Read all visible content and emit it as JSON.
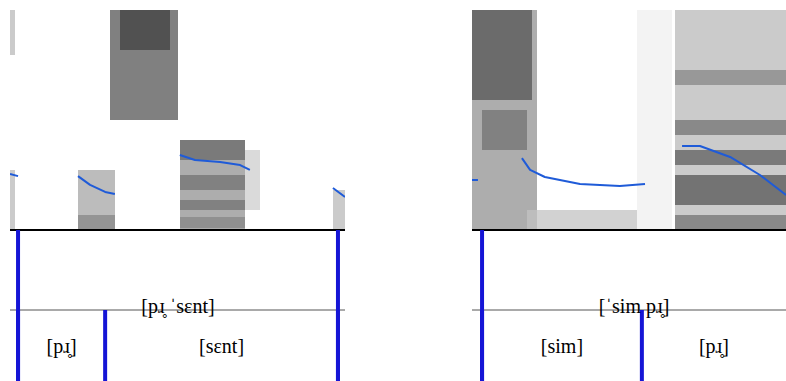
{
  "chart_data": [
    {
      "type": "line",
      "color": "#1f5bd8",
      "xlim": [
        0,
        100
      ],
      "ylim": [
        0,
        100
      ],
      "tick_labels": false,
      "x": [
        0,
        2.4,
        null,
        20.3,
        23.9,
        28.4,
        31.3,
        null,
        50.7,
        55.2,
        62.7,
        68.7,
        71.6,
        null,
        96.4,
        100
      ],
      "values": [
        25.5,
        24.5,
        null,
        24.5,
        20.5,
        17.3,
        16.4,
        null,
        34.1,
        31.8,
        30.9,
        29.5,
        27.3,
        null,
        19.1,
        15
      ],
      "annotations": {
        "word": {
          "labels": [
            "[pɹ̥ ˈsɛnt]"
          ],
          "boundaries": [
            2.4,
            97.9
          ]
        },
        "segments": {
          "labels": [
            "[pɹ̥]",
            "[sɛnt]"
          ],
          "boundaries": [
            2.4,
            28.4,
            97.9
          ]
        }
      }
    },
    {
      "type": "line",
      "color": "#1f5bd8",
      "xlim": [
        0,
        100
      ],
      "ylim": [
        0,
        100
      ],
      "tick_labels": false,
      "x": [
        0,
        1.9,
        null,
        15.9,
        18.5,
        23.2,
        34.4,
        47.1,
        55.1,
        null,
        66.9,
        72.6,
        82.2,
        91.7,
        100
      ],
      "values": [
        22.7,
        22.7,
        null,
        32.7,
        27.3,
        24.1,
        20.9,
        20,
        20.9,
        null,
        38.2,
        38.2,
        33.2,
        25,
        15.9
      ],
      "annotations": {
        "word": {
          "labels": [
            "[ˈsim pɹ̥]"
          ],
          "boundaries": [
            3.2
          ]
        },
        "segments": {
          "labels": [
            "[sim]",
            "[pɹ̥]"
          ],
          "boundaries": [
            3.2,
            54.1
          ]
        }
      }
    }
  ]
}
